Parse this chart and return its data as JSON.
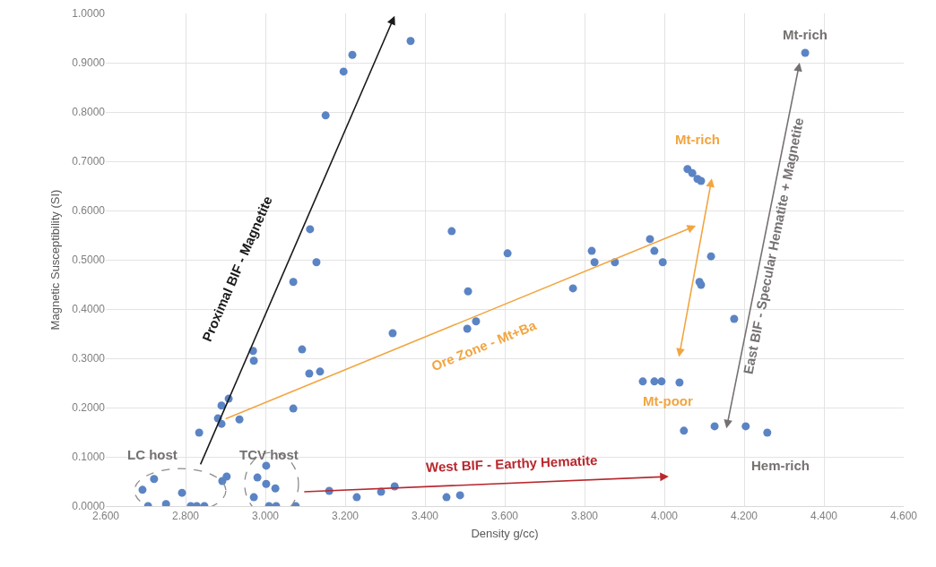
{
  "chart_data": {
    "type": "scatter",
    "xlabel": "Density g/cc)",
    "ylabel": "Magnetic Susceptibility (SI)",
    "xlim": [
      2.6,
      4.6
    ],
    "xticks": [
      {
        "value": 2.6,
        "label": "2.600"
      },
      {
        "value": 2.8,
        "label": "2.800"
      },
      {
        "value": 3.0,
        "label": "3.000"
      },
      {
        "value": 3.2,
        "label": "3.200"
      },
      {
        "value": 3.4,
        "label": "3.400"
      },
      {
        "value": 3.6,
        "label": "3.600"
      },
      {
        "value": 3.8,
        "label": "3.800"
      },
      {
        "value": 4.0,
        "label": "4.000"
      },
      {
        "value": 4.2,
        "label": "4.200"
      },
      {
        "value": 4.4,
        "label": "4.400"
      },
      {
        "value": 4.6,
        "label": "4.600"
      }
    ],
    "ylim": [
      0,
      1
    ],
    "yticks": [
      {
        "value": 0,
        "label": "0.0000"
      },
      {
        "value": 0.1,
        "label": "0.1000"
      },
      {
        "value": 0.2,
        "label": "0.2000"
      },
      {
        "value": 0.3,
        "label": "0.3000"
      },
      {
        "value": 0.4,
        "label": "0.4000"
      },
      {
        "value": 0.5,
        "label": "0.5000"
      },
      {
        "value": 0.6,
        "label": "0.6000"
      },
      {
        "value": 0.7,
        "label": "0.7000"
      },
      {
        "value": 0.8,
        "label": "0.8000"
      },
      {
        "value": 0.9,
        "label": "0.9000"
      },
      {
        "value": 1,
        "label": "1.0000"
      }
    ],
    "grid": true,
    "marker": "circle",
    "series": [
      {
        "color": "#5b84c4",
        "x": [
          3.364,
          3.218,
          3.196,
          3.151,
          3.112,
          3.128,
          3.07,
          2.969,
          2.971,
          3.092,
          3.11,
          3.137,
          3.07,
          2.89,
          2.908,
          2.881,
          2.89,
          2.935,
          2.834,
          2.903,
          2.892,
          3.467,
          3.607,
          3.818,
          3.825,
          3.876,
          3.964,
          3.975,
          3.996,
          3.508,
          3.528,
          3.506,
          3.319,
          3.771,
          3.946,
          3.975,
          3.993,
          4.038,
          3.324,
          3.29,
          3.454,
          3.488,
          3.16,
          3.229,
          2.721,
          2.692,
          2.706,
          2.751,
          2.791,
          2.813,
          2.828,
          2.847,
          3.002,
          2.98,
          3.002,
          3.025,
          2.971,
          3.009,
          3.027,
          3.076,
          4.353,
          4.058,
          4.07,
          4.083,
          4.092,
          4.117,
          4.088,
          4.092,
          4.175,
          4.049,
          4.126,
          4.204,
          4.258
        ],
        "values": [
          0.944,
          0.916,
          0.882,
          0.793,
          0.562,
          0.495,
          0.455,
          0.315,
          0.295,
          0.318,
          0.269,
          0.273,
          0.198,
          0.204,
          0.218,
          0.178,
          0.167,
          0.176,
          0.149,
          0.06,
          0.051,
          0.558,
          0.513,
          0.518,
          0.495,
          0.495,
          0.542,
          0.518,
          0.495,
          0.436,
          0.375,
          0.36,
          0.351,
          0.442,
          0.253,
          0.253,
          0.253,
          0.251,
          0.04,
          0.029,
          0.018,
          0.022,
          0.031,
          0.018,
          0.055,
          0.033,
          0.0,
          0.004,
          0.027,
          0.0,
          0.0,
          0.0,
          0.082,
          0.058,
          0.045,
          0.036,
          0.018,
          0.0,
          0.0,
          0.0,
          0.92,
          0.684,
          0.676,
          0.664,
          0.66,
          0.507,
          0.455,
          0.449,
          0.38,
          0.153,
          0.162,
          0.162,
          0.149
        ]
      }
    ],
    "annotations": [
      "Proximal BIF - Magnetite",
      "Ore Zone - Mt+Ba",
      "Mt-rich",
      "Mt-poor",
      "East BIF - Specular Hematite + Magnetite",
      "Mt-rich",
      "Hem-rich",
      "West BIF - Earthy Hematite",
      "LC host",
      "TCV host"
    ]
  }
}
